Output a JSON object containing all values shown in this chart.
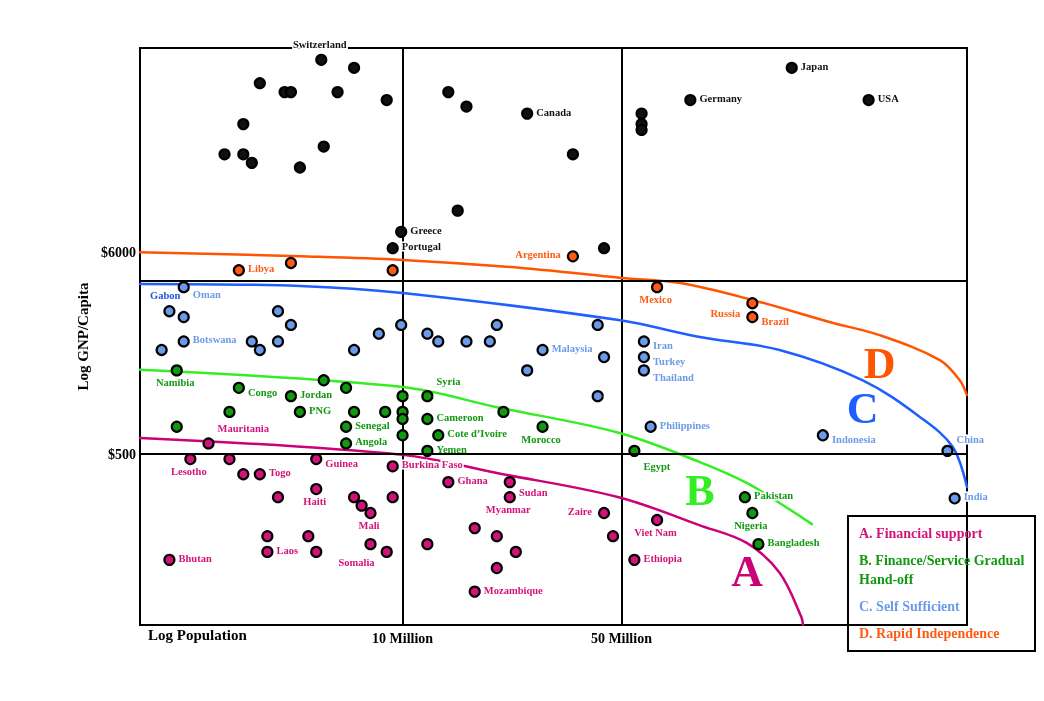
{
  "chart_data": {
    "type": "scatter",
    "xlabel": "Log Population",
    "ylabel": "Log GNP/Capita",
    "log": "xy",
    "xlim": [
      1.45,
      635
    ],
    "ylim": [
      61,
      74000
    ],
    "xticks": [
      {
        "value": 10,
        "label": "10 Million"
      },
      {
        "value": 50,
        "label": "50 Million"
      }
    ],
    "yticks": [
      {
        "value": 500,
        "label": "$500"
      },
      {
        "value": 6000,
        "label": "$6000"
      }
    ],
    "grid": "x",
    "legend": "bottom right",
    "marker": "circle",
    "ref_lines": [
      {
        "axis": "y",
        "value": 500
      },
      {
        "axis": "y",
        "value": 4200
      }
    ],
    "annotations": [
      "Gabon"
    ],
    "series": [
      {
        "name": "A. Financial support",
        "color": "#d4137a",
        "x": [
          2.4,
          2.1,
          2.8,
          5.3,
          3.1,
          3.5,
          9.3,
          5.3,
          4.0,
          7.0,
          7.4,
          7.9,
          9.3,
          3.7,
          5.0,
          3.7,
          5.3,
          7.9,
          8.9,
          1.8,
          14,
          22,
          22,
          44,
          65,
          55,
          17,
          20,
          12,
          23,
          20,
          17,
          47
        ],
        "values": [
          570,
          470,
          470,
          470,
          390,
          390,
          430,
          325,
          294,
          294,
          265,
          242,
          294,
          182,
          182,
          150,
          150,
          165,
          150,
          136,
          354,
          354,
          294,
          242,
          222,
          136,
          201,
          182,
          165,
          150,
          123,
          92,
          182
        ],
        "value_labels": [
          "Mauritania",
          "Lesotho",
          null,
          "Guinea",
          null,
          "Togo",
          "Burkina Faso",
          "Haiti",
          null,
          null,
          null,
          "Mali",
          null,
          null,
          null,
          "Laos",
          null,
          null,
          "Somalia",
          "Bhutan",
          "Ghana",
          "Sudan",
          "Myanmar",
          "Zaire",
          "Viet Nam",
          "Ethiopia",
          null,
          null,
          null,
          null,
          null,
          "Mozambique",
          null
        ]
      },
      {
        "name": "B. Finance/Service Gradual Hand-off",
        "color": "#119911",
        "x": [
          1.9,
          3.0,
          5.6,
          4.4,
          6.6,
          2.8,
          4.7,
          7.0,
          8.8,
          1.9,
          6.6,
          6.6,
          10,
          12,
          10,
          10,
          12,
          21,
          10,
          13,
          28,
          12,
          55,
          124,
          131,
          137
        ],
        "values": [
          1400,
          1130,
          1240,
          1020,
          1130,
          840,
          840,
          840,
          840,
          700,
          700,
          570,
          1020,
          1020,
          840,
          770,
          770,
          840,
          630,
          630,
          700,
          520,
          520,
          294,
          242,
          165
        ],
        "value_labels": [
          "Namibia",
          "Congo",
          null,
          "Jordan",
          null,
          null,
          "PNG",
          null,
          null,
          null,
          "Senegal",
          "Angola",
          null,
          "Syria",
          null,
          null,
          "Cameroon",
          null,
          null,
          "Cote d’Ivoire",
          "Morocco",
          "Yemen",
          "Egypt",
          "Pakistan",
          "Nigeria",
          "Bangladesh"
        ]
      },
      {
        "name": "C. Self Sufficient",
        "color": "#6b9be8",
        "x": [
          2.0,
          1.8,
          2.0,
          1.7,
          2.0,
          3.3,
          3.5,
          4.0,
          4.0,
          4.4,
          7.0,
          8.4,
          9.9,
          12,
          13,
          16,
          19,
          20,
          28,
          42,
          44,
          25,
          42,
          59,
          59,
          59,
          62,
          220,
          550,
          580
        ],
        "values": [
          3900,
          2900,
          2700,
          1800,
          2000,
          2000,
          1800,
          2000,
          2900,
          2450,
          1800,
          2200,
          2450,
          2200,
          2000,
          2000,
          2000,
          2450,
          1800,
          2450,
          1650,
          1400,
          1020,
          2000,
          1650,
          1400,
          700,
          630,
          520,
          290
        ],
        "value_labels": [
          "Oman",
          null,
          null,
          null,
          "Botswana",
          null,
          null,
          null,
          null,
          null,
          null,
          null,
          null,
          null,
          null,
          null,
          null,
          null,
          "Malaysia",
          null,
          null,
          null,
          null,
          "Iran",
          "Turkey",
          "Thailand",
          "Philippines",
          "Indonesia",
          "China",
          "India"
        ]
      },
      {
        "name": "D. Rapid Independence",
        "color": "#ff5a14",
        "x": [
          3.0,
          4.4,
          9.3,
          35,
          65,
          131,
          131
        ],
        "values": [
          4800,
          5250,
          4800,
          5700,
          3900,
          3200,
          2700
        ],
        "value_labels": [
          "Libya",
          null,
          null,
          "Argentina",
          "Mexico",
          "Russia",
          "Brazil"
        ]
      },
      {
        "color": "#111111",
        "x": [
          5.5,
          7.0,
          3.5,
          4.2,
          4.4,
          6.2,
          8.9,
          3.1,
          2.7,
          3.1,
          3.3,
          5.6,
          4.7,
          9.9,
          9.3,
          14,
          16,
          25,
          35,
          15,
          44,
          58,
          58,
          58,
          83,
          175,
          308
        ],
        "values": [
          64000,
          58000,
          48000,
          43000,
          43000,
          43000,
          39000,
          29000,
          20000,
          20000,
          18000,
          22000,
          17000,
          7700,
          6300,
          43000,
          36000,
          33000,
          20000,
          10000,
          6300,
          33000,
          29000,
          27000,
          39000,
          58000,
          39000
        ],
        "value_labels": [
          "Switzerland",
          null,
          null,
          null,
          null,
          null,
          null,
          null,
          null,
          null,
          null,
          null,
          null,
          "Greece",
          "Portugal",
          null,
          null,
          "Canada",
          null,
          null,
          null,
          null,
          null,
          null,
          "Germany",
          "Japan",
          "USA"
        ]
      },
      {
        "name": "A",
        "type": "line",
        "marker": "none",
        "color": "#cc0077",
        "x": [
          1.45,
          10,
          20,
          49,
          89,
          126,
          160,
          188,
          190
        ],
        "values": [
          610,
          495,
          396,
          294,
          208,
          167,
          116,
          67,
          61
        ]
      },
      {
        "name": "B",
        "type": "line",
        "marker": "none",
        "color": "#33ee22",
        "x": [
          1.45,
          10,
          20,
          49,
          89,
          126,
          160,
          203
        ],
        "values": [
          1410,
          1140,
          890,
          650,
          453,
          350,
          274,
          211
        ]
      },
      {
        "name": "C",
        "type": "line",
        "marker": "none",
        "color": "#1f5fff",
        "x": [
          1.45,
          4.7,
          10,
          49,
          89,
          160,
          295,
          449,
          572,
          635
        ],
        "values": [
          4060,
          3960,
          3630,
          2600,
          2110,
          1800,
          1240,
          790,
          545,
          333
        ]
      },
      {
        "name": "D",
        "type": "line",
        "marker": "none",
        "color": "#ff5500",
        "x": [
          1.45,
          4.7,
          10,
          24,
          50,
          77,
          131,
          231,
          334,
          520,
          602,
          634
        ],
        "values": [
          6000,
          5700,
          5450,
          4940,
          4370,
          4100,
          3330,
          2540,
          2160,
          1590,
          1240,
          1035
        ]
      }
    ]
  }
}
